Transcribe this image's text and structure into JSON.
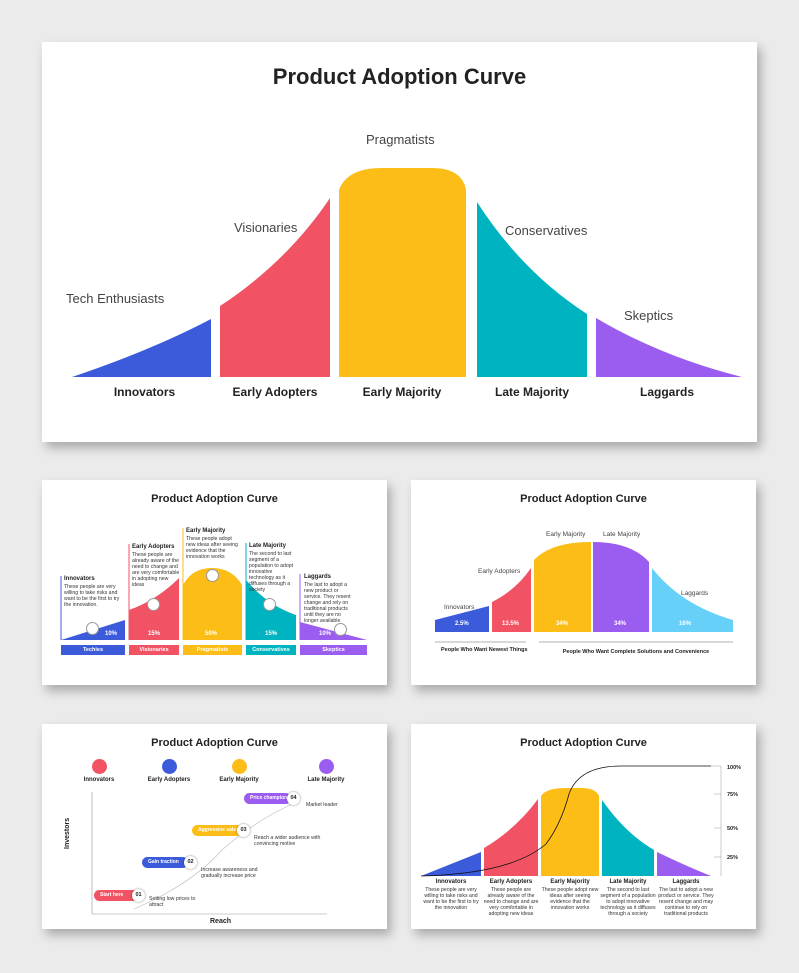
{
  "colors": {
    "blue": "#3b5bdb",
    "red": "#f25364",
    "yellow": "#fcbd17",
    "teal": "#00b3c0",
    "purple": "#9b5cf0",
    "lightblue": "#67d0f9"
  },
  "slide1": {
    "title": "Product Adoption Curve",
    "segments": [
      {
        "name": "Innovators",
        "label": "Tech Enthusiasts"
      },
      {
        "name": "Early Adopters",
        "label": "Visionaries"
      },
      {
        "name": "Early Majority",
        "label": "Pragmatists"
      },
      {
        "name": "Late Majority",
        "label": "Conservatives"
      },
      {
        "name": "Laggards",
        "label": "Skeptics"
      }
    ]
  },
  "slide2": {
    "title": "Product Adoption Curve",
    "segments": [
      {
        "name": "Innovators",
        "desc": "These people are very willing to take risks and want to be the first to try the innovation.",
        "pct": "10%",
        "tag": "Techies",
        "icon": "lightbulb-icon"
      },
      {
        "name": "Early Adopters",
        "desc": "These people are already aware of the need to change and are very comfortable in adopting new ideas",
        "pct": "15%",
        "tag": "Visionaries",
        "icon": "gear-icon"
      },
      {
        "name": "Early Majority",
        "desc": "These people adopt new ideas after seeing evidence that the innovation works",
        "pct": "50%",
        "tag": "Pragmatists",
        "icon": "people-icon"
      },
      {
        "name": "Late Majority",
        "desc": "The second to last segment of a population to adopt innovative technology as it diffuses through a society",
        "pct": "15%",
        "tag": "Conservatives",
        "icon": "settings-icon"
      },
      {
        "name": "Laggards",
        "desc": "The last to adopt a new product or service. They resent change and rely on traditional products until they are no longer available",
        "pct": "10%",
        "tag": "Skeptics",
        "icon": "cyclist-icon"
      }
    ]
  },
  "slide3": {
    "title": "Product Adoption Curve",
    "segments": [
      {
        "name": "Innovators",
        "pct": "2.5%"
      },
      {
        "name": "Early Adopters",
        "pct": "13.5%"
      },
      {
        "name": "Early Majority",
        "pct": "34%"
      },
      {
        "name": "Late Majority",
        "pct": "34%"
      },
      {
        "name": "Laggards",
        "pct": "16%"
      }
    ],
    "footer_left": "People Who Want Newest Things",
    "footer_right": "People Who Want Complete Solutions and Convenience"
  },
  "slide4": {
    "title": "Product Adoption Curve",
    "legend": [
      "Innovators",
      "Early Adopters",
      "Early Majority",
      "Late Majority"
    ],
    "axis_y": "Investors",
    "axis_x": "Reach",
    "steps": [
      {
        "num": "01",
        "label": "Start here",
        "desc": "Setting low prices to attract"
      },
      {
        "num": "02",
        "label": "Gain traction",
        "desc": "Increase awareness and gradually increase price"
      },
      {
        "num": "03",
        "label": "Aggressive sales",
        "desc": "Reach a wider audience with convincing motive"
      },
      {
        "num": "04",
        "label": "Price champion",
        "desc": "Market leader"
      }
    ]
  },
  "slide5": {
    "title": "Product Adoption Curve",
    "ticks": [
      "100%",
      "75%",
      "50%",
      "25%"
    ],
    "segments": [
      {
        "name": "Innovators",
        "desc": "These people are very willing to take risks and want to be the first to try the innovation"
      },
      {
        "name": "Early Adopters",
        "desc": "These people are already aware of the need to change and are very comfortable in adopting new ideas"
      },
      {
        "name": "Early Majority",
        "desc": "These people adopt new ideas after seeing evidence that the innovation works"
      },
      {
        "name": "Late Majority",
        "desc": "The second to last segment of a population to adopt innovative technology as it diffuses through a society"
      },
      {
        "name": "Laggards",
        "desc": "The last to adopt a new product or service. They resent change and may continue to rely on traditional products"
      }
    ]
  }
}
